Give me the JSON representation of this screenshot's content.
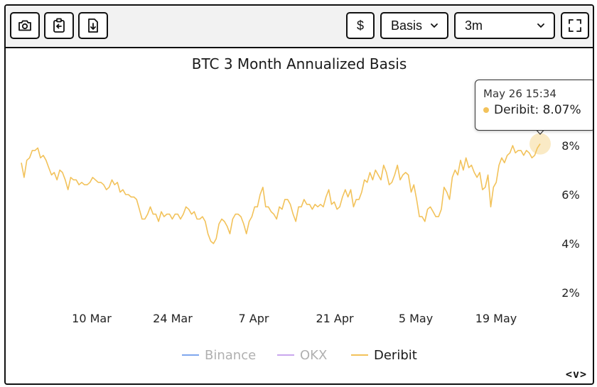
{
  "toolbar": {
    "currency_label": "$",
    "metric_select": "Basis",
    "range_select": "3m"
  },
  "colors": {
    "binance": "#7fa7ee",
    "okx": "#c9a7ee",
    "deribit": "#f2c25a",
    "text": "#1a1a1a",
    "axis_label": "#222222"
  },
  "chart_data": {
    "type": "line",
    "title": "BTC 3 Month Annualized Basis",
    "x_tick_labels": [
      "10 Mar",
      "24 Mar",
      "7 Apr",
      "21 Apr",
      "5 May",
      "19 May"
    ],
    "y_tick_labels": [
      "8%",
      "6%",
      "4%",
      "2%"
    ],
    "y_ticks": [
      8,
      6,
      4,
      2
    ],
    "ylim": [
      1.5,
      9.5
    ],
    "legend": [
      "Binance",
      "OKX",
      "Deribit"
    ],
    "legend_position": "bottom",
    "tooltip": {
      "time": "May 26 15:34",
      "series": "Deribit",
      "value_text": "8.07%"
    },
    "series": [
      {
        "name": "Deribit",
        "x_start": "Feb 28",
        "x_end": "May 26",
        "values": [
          7.3,
          6.7,
          7.4,
          7.5,
          7.8,
          7.8,
          7.9,
          7.5,
          7.6,
          7.4,
          7.1,
          6.8,
          6.9,
          6.6,
          7.0,
          6.9,
          6.6,
          6.2,
          6.7,
          6.6,
          6.6,
          6.4,
          6.5,
          6.4,
          6.4,
          6.5,
          6.7,
          6.6,
          6.5,
          6.5,
          6.4,
          6.2,
          6.3,
          6.6,
          6.4,
          6.5,
          6.1,
          6.2,
          6.0,
          6.0,
          5.9,
          5.9,
          5.8,
          5.4,
          5.0,
          5.0,
          5.2,
          5.5,
          5.2,
          5.2,
          4.9,
          5.3,
          5.1,
          5.2,
          5.2,
          5.0,
          5.2,
          5.2,
          5.0,
          5.2,
          5.5,
          5.4,
          5.2,
          5.3,
          5.0,
          5.0,
          5.1,
          4.9,
          4.4,
          4.1,
          4.0,
          4.2,
          4.8,
          5.0,
          4.9,
          4.7,
          4.4,
          5.0,
          5.2,
          5.2,
          5.1,
          4.8,
          4.4,
          4.9,
          5.1,
          5.5,
          5.5,
          6.0,
          6.3,
          5.5,
          5.5,
          5.3,
          5.2,
          5.0,
          5.5,
          5.4,
          5.8,
          5.8,
          5.6,
          5.2,
          4.9,
          5.5,
          5.5,
          5.8,
          5.6,
          5.6,
          5.4,
          5.6,
          5.5,
          5.6,
          5.5,
          5.9,
          6.2,
          5.6,
          5.7,
          5.4,
          5.5,
          5.9,
          6.2,
          5.9,
          6.2,
          5.5,
          5.8,
          5.8,
          6.1,
          6.6,
          6.5,
          6.9,
          6.6,
          7.0,
          6.8,
          6.6,
          7.2,
          6.9,
          6.4,
          6.5,
          6.8,
          7.2,
          6.6,
          6.8,
          6.9,
          6.8,
          6.1,
          6.4,
          5.8,
          5.1,
          5.1,
          4.9,
          5.4,
          5.5,
          5.3,
          5.1,
          5.1,
          5.4,
          6.3,
          6.1,
          5.8,
          6.7,
          7.0,
          6.8,
          7.4,
          7.0,
          7.5,
          7.1,
          7.2,
          6.9,
          6.7,
          6.9,
          6.2,
          6.3,
          6.8,
          5.5,
          6.3,
          6.5,
          7.2,
          7.5,
          7.3,
          7.6,
          7.7,
          8.0,
          7.7,
          7.8,
          7.8,
          7.6,
          7.8,
          7.7,
          7.5,
          7.6,
          7.9,
          8.07
        ]
      }
    ]
  }
}
